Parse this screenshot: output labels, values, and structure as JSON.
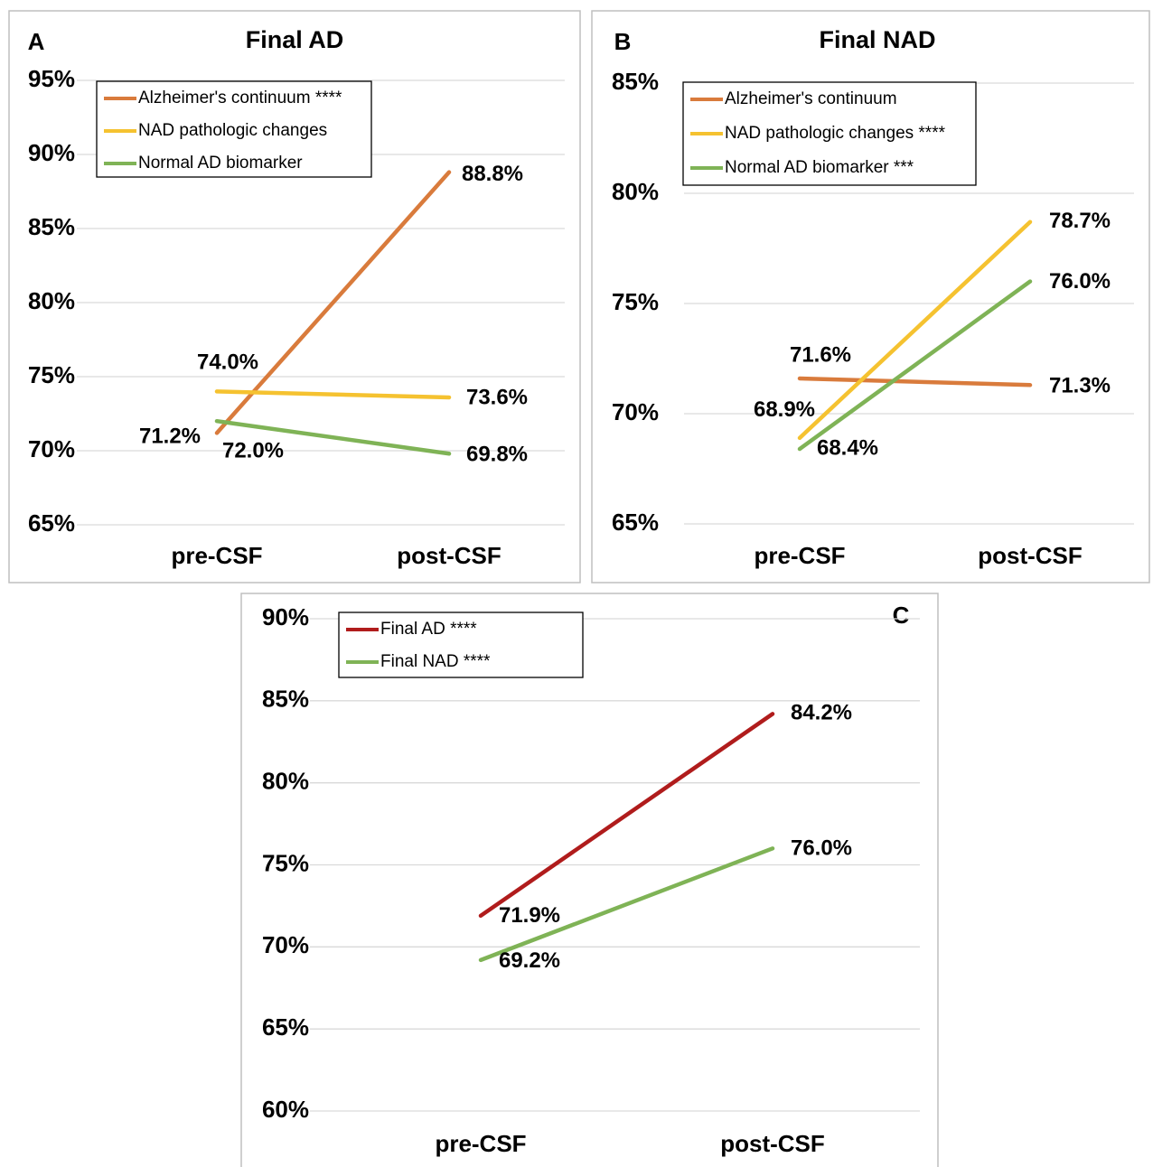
{
  "chart_data": [
    {
      "type": "line",
      "panel_label": "A",
      "title": "Final AD",
      "categories": [
        "pre-CSF",
        "post-CSF"
      ],
      "series": [
        {
          "name": "Alzheimer's continuum ****",
          "color": "#d97b3c",
          "values": [
            71.2,
            88.8
          ],
          "value_labels": [
            "71.2%",
            "88.8%"
          ]
        },
        {
          "name": "NAD pathologic changes",
          "color": "#f5c230",
          "values": [
            74.0,
            73.6
          ],
          "value_labels": [
            "74.0%",
            "73.6%"
          ]
        },
        {
          "name": "Normal AD biomarker",
          "color": "#7fb356",
          "values": [
            72.0,
            69.8
          ],
          "value_labels": [
            "72.0%",
            "69.8%"
          ]
        }
      ],
      "ylim": [
        65,
        95
      ],
      "yticks": [
        {
          "value": 65,
          "label": "65%"
        },
        {
          "value": 70,
          "label": "70%"
        },
        {
          "value": 75,
          "label": "75%"
        },
        {
          "value": 80,
          "label": "80%"
        },
        {
          "value": 85,
          "label": "85%"
        },
        {
          "value": 90,
          "label": "90%"
        },
        {
          "value": 95,
          "label": "95%"
        }
      ],
      "grid": true
    },
    {
      "type": "line",
      "panel_label": "B",
      "title": "Final NAD",
      "categories": [
        "pre-CSF",
        "post-CSF"
      ],
      "series": [
        {
          "name": "Alzheimer's continuum",
          "color": "#d97b3c",
          "values": [
            71.6,
            71.3
          ],
          "value_labels": [
            "71.6%",
            "71.3%"
          ]
        },
        {
          "name": "NAD pathologic changes ****",
          "color": "#f5c230",
          "values": [
            68.9,
            78.7
          ],
          "value_labels": [
            "68.9%",
            "78.7%"
          ]
        },
        {
          "name": "Normal AD biomarker ***",
          "color": "#7fb356",
          "values": [
            68.4,
            76.0
          ],
          "value_labels": [
            "68.4%",
            "76.0%"
          ]
        }
      ],
      "ylim": [
        65,
        85
      ],
      "yticks": [
        {
          "value": 65,
          "label": "65%"
        },
        {
          "value": 70,
          "label": "70%"
        },
        {
          "value": 75,
          "label": "75%"
        },
        {
          "value": 80,
          "label": "80%"
        },
        {
          "value": 85,
          "label": "85%"
        }
      ],
      "grid": true
    },
    {
      "type": "line",
      "panel_label": "C",
      "categories": [
        "pre-CSF",
        "post-CSF"
      ],
      "series": [
        {
          "name": "Final AD ****",
          "color": "#b01c1c",
          "values": [
            71.9,
            84.2
          ],
          "value_labels": [
            "71.9%",
            "84.2%"
          ]
        },
        {
          "name": "Final NAD ****",
          "color": "#7fb356",
          "values": [
            69.2,
            76.0
          ],
          "value_labels": [
            "69.2%",
            "76.0%"
          ]
        }
      ],
      "ylim": [
        60,
        90
      ],
      "yticks": [
        {
          "value": 60,
          "label": "60%"
        },
        {
          "value": 65,
          "label": "65%"
        },
        {
          "value": 70,
          "label": "70%"
        },
        {
          "value": 75,
          "label": "75%"
        },
        {
          "value": 80,
          "label": "80%"
        },
        {
          "value": 85,
          "label": "85%"
        },
        {
          "value": 90,
          "label": "90%"
        }
      ],
      "grid": true
    }
  ]
}
